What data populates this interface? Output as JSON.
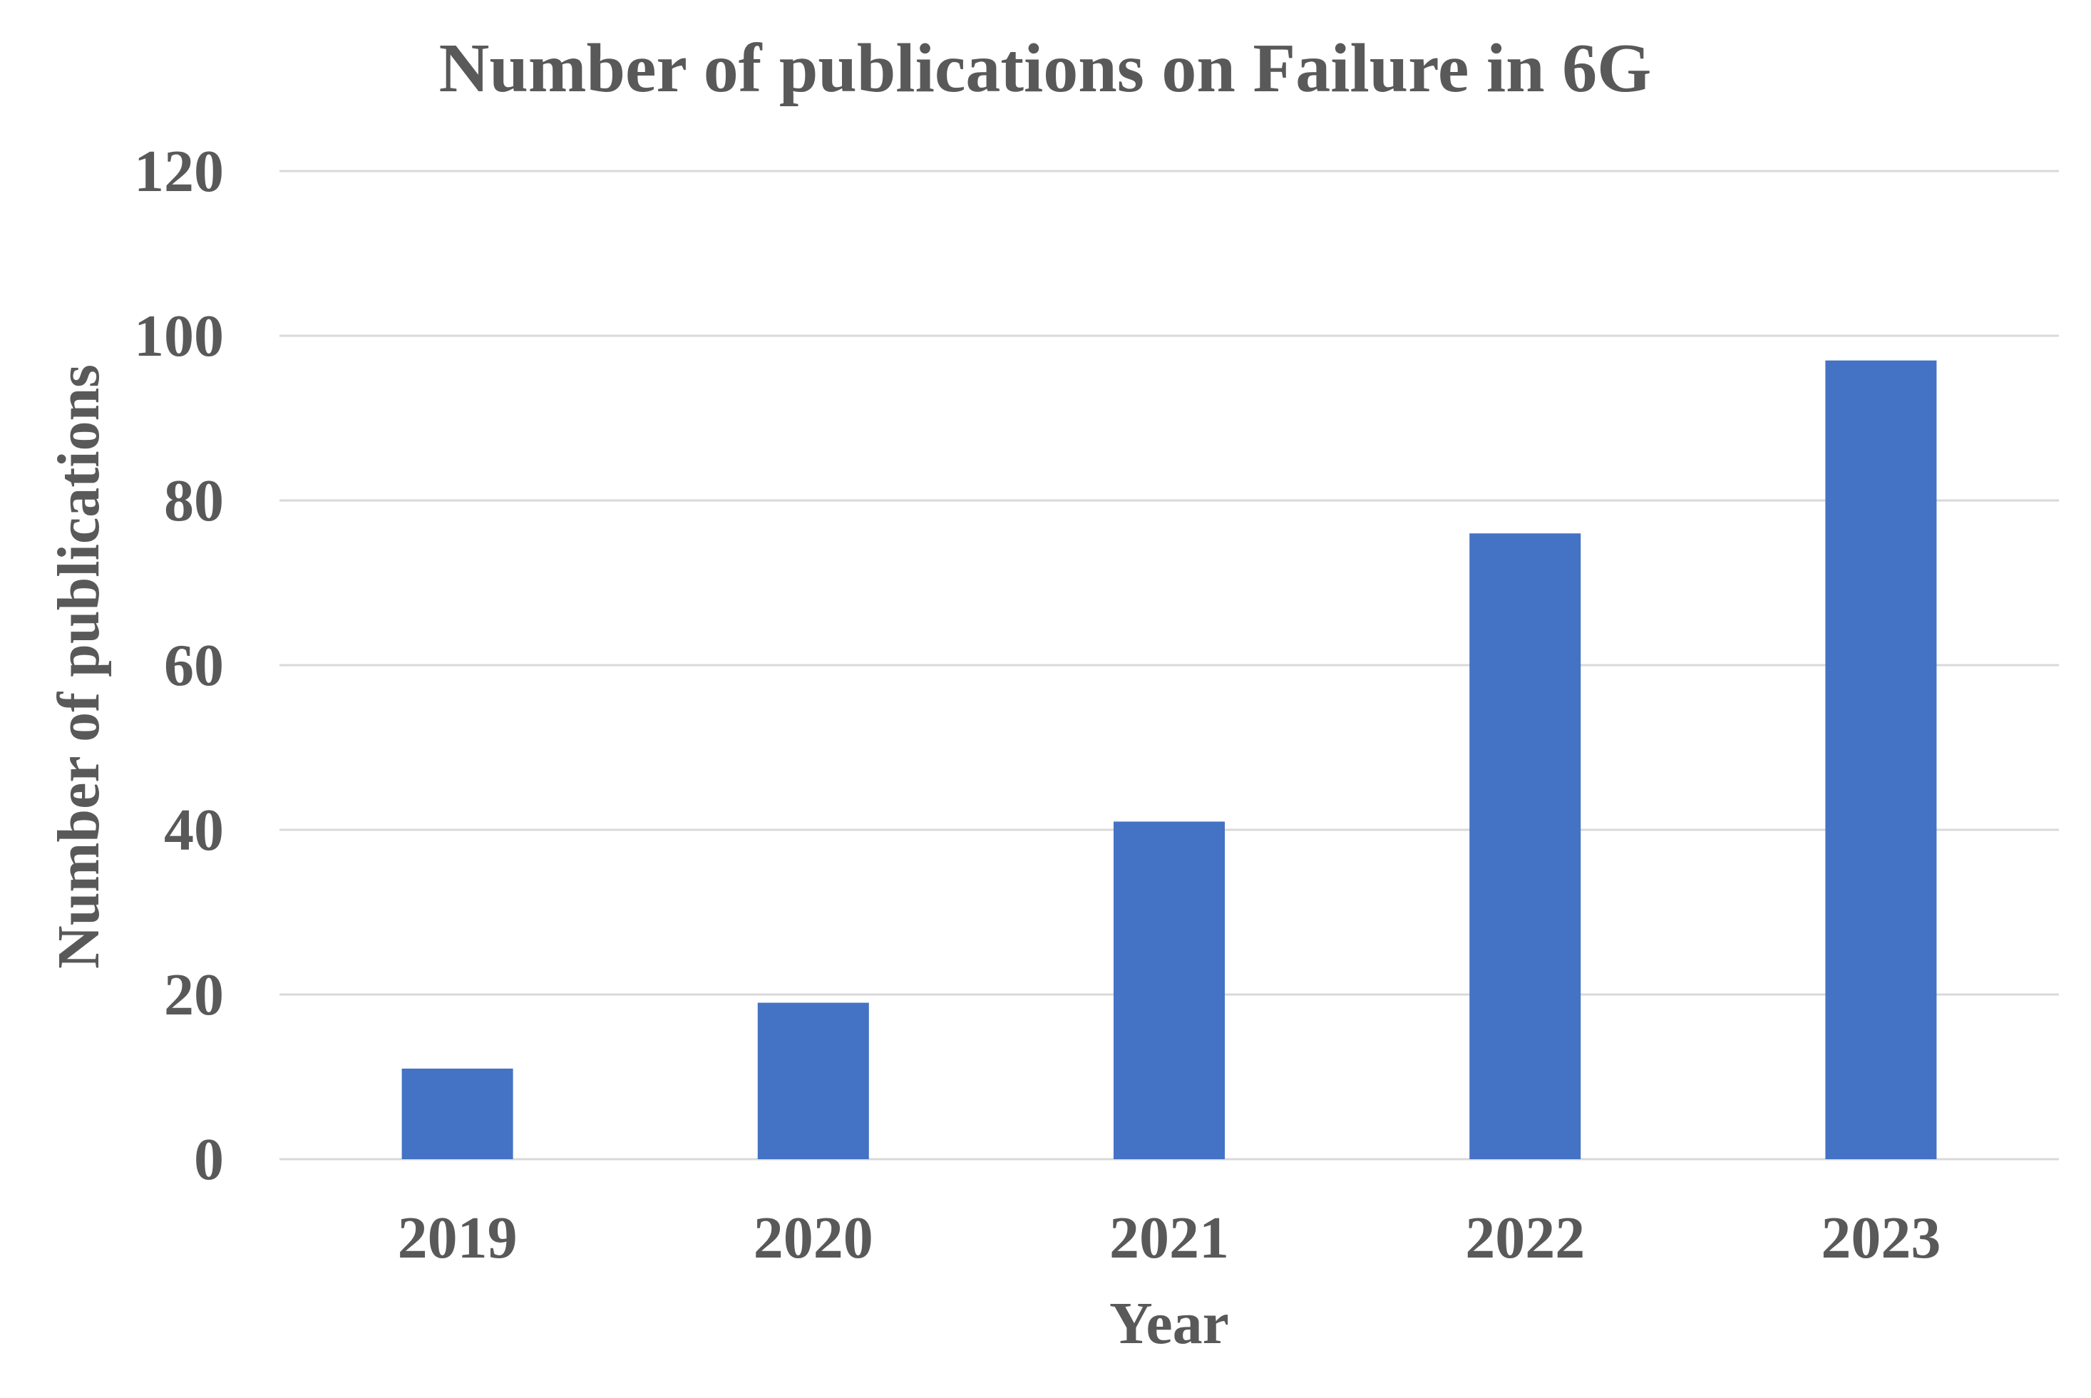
{
  "chart_data": {
    "type": "bar",
    "title": "Number of publications on Failure in 6G",
    "xlabel": "Year",
    "ylabel": "Number of publications",
    "categories": [
      "2019",
      "2020",
      "2021",
      "2022",
      "2023"
    ],
    "values": [
      11,
      19,
      41,
      76,
      97
    ],
    "ylim": [
      0,
      120
    ],
    "yticks": [
      0,
      20,
      40,
      60,
      80,
      100,
      120
    ],
    "grid": true,
    "legend": "none",
    "colors": {
      "bar": "#4472C4",
      "text": "#595959",
      "grid": "#D9D9D9"
    }
  }
}
